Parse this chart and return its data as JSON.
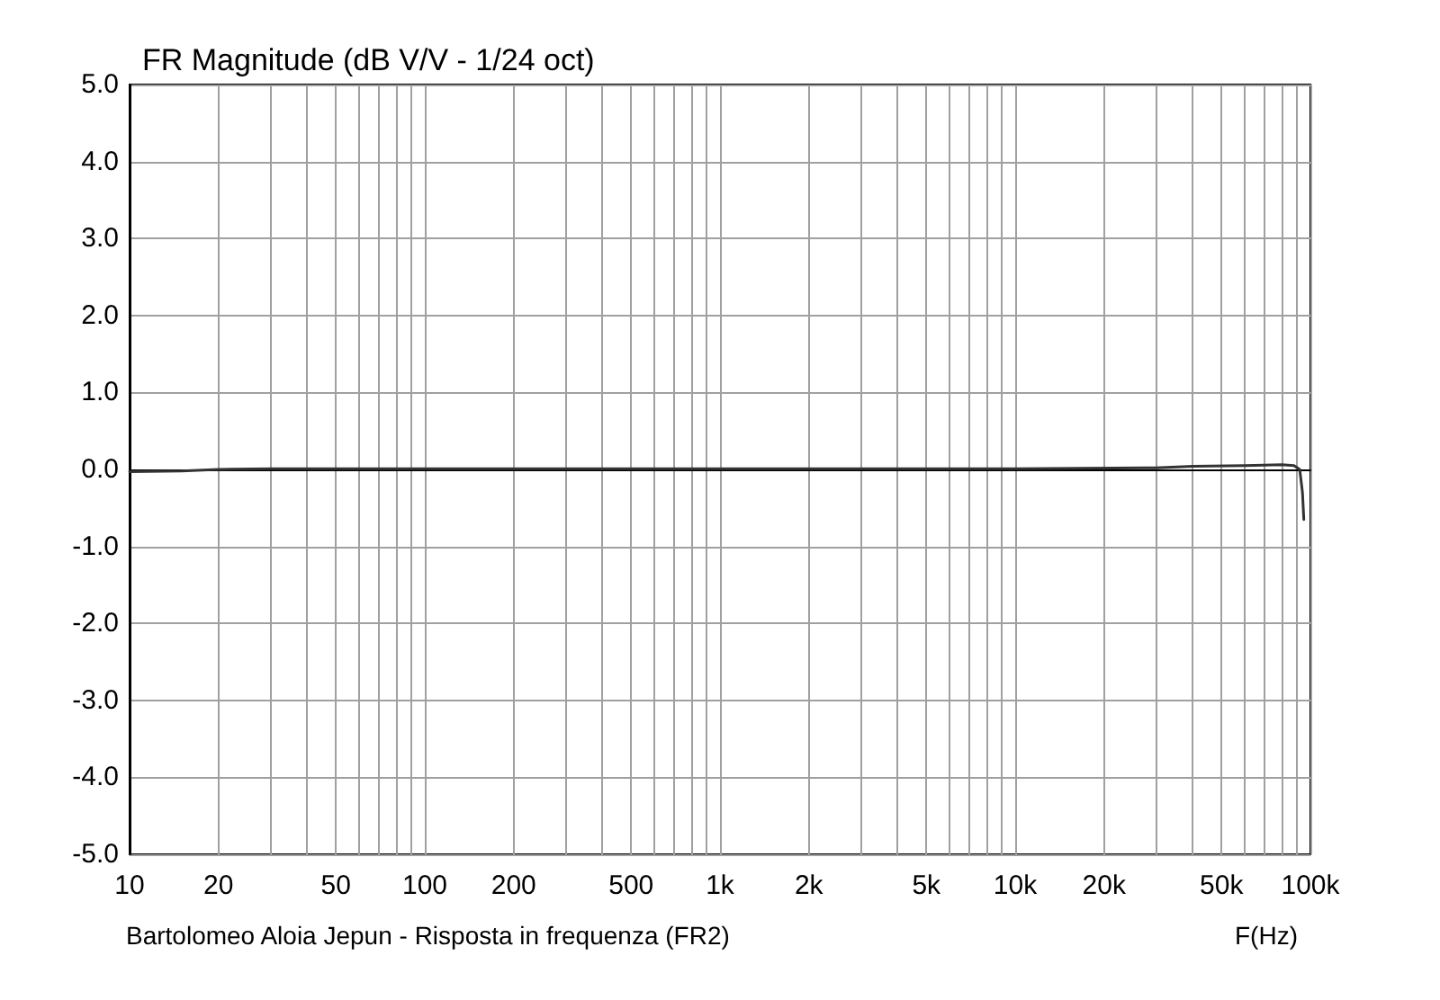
{
  "chart_data": {
    "type": "line",
    "title": "FR Magnitude (dB V/V - 1/24 oct)",
    "xlabel": "F(Hz)",
    "annotations": [
      "Bartolomeo Aloia Jepun - Risposta in frequenza (FR2)"
    ],
    "x": [
      10,
      15,
      20,
      30,
      100,
      1000,
      10000,
      30000,
      40000,
      60000,
      80000,
      88000,
      92000,
      94000,
      95000
    ],
    "series": [
      {
        "color": "#333333",
        "values": [
          -0.03,
          -0.02,
          0,
          0.01,
          0.01,
          0.01,
          0.01,
          0.02,
          0.04,
          0.05,
          0.06,
          0.05,
          0,
          -0.3,
          -0.65
        ]
      }
    ],
    "log": "x",
    "grid": true,
    "marker": "none",
    "line_style": "solid",
    "xlim": [
      10,
      100000
    ],
    "xticks": [
      10,
      20,
      {
        "value": 30,
        "label": null
      },
      {
        "value": 40,
        "label": null
      },
      50,
      {
        "value": 60,
        "label": null
      },
      {
        "value": 70,
        "label": null
      },
      {
        "value": 80,
        "label": null
      },
      {
        "value": 90,
        "label": null
      },
      100,
      200,
      {
        "value": 300,
        "label": null
      },
      {
        "value": 400,
        "label": null
      },
      500,
      {
        "value": 600,
        "label": null
      },
      {
        "value": 700,
        "label": null
      },
      {
        "value": 800,
        "label": null
      },
      {
        "value": 900,
        "label": null
      },
      {
        "value": 1000,
        "label": "1k"
      },
      {
        "value": 2000,
        "label": "2k"
      },
      {
        "value": 3000,
        "label": null
      },
      {
        "value": 4000,
        "label": null
      },
      {
        "value": 5000,
        "label": "5k"
      },
      {
        "value": 6000,
        "label": null
      },
      {
        "value": 7000,
        "label": null
      },
      {
        "value": 8000,
        "label": null
      },
      {
        "value": 9000,
        "label": null
      },
      {
        "value": 10000,
        "label": "10k"
      },
      {
        "value": 20000,
        "label": "20k"
      },
      {
        "value": 30000,
        "label": null
      },
      {
        "value": 40000,
        "label": null
      },
      {
        "value": 50000,
        "label": "50k"
      },
      {
        "value": 60000,
        "label": null
      },
      {
        "value": 70000,
        "label": null
      },
      {
        "value": 80000,
        "label": null
      },
      {
        "value": 90000,
        "label": null
      },
      {
        "value": 100000,
        "label": "100k"
      }
    ],
    "ylim": [
      -5,
      5
    ],
    "yticks": [
      {
        "value": -5,
        "label": "-5.0"
      },
      {
        "value": -4,
        "label": "-4.0"
      },
      {
        "value": -3,
        "label": "-3.0"
      },
      {
        "value": -2,
        "label": "-2.0"
      },
      {
        "value": -1,
        "label": "-1.0"
      },
      {
        "value": 0,
        "label": "0.0"
      },
      {
        "value": 1,
        "label": "1.0"
      },
      {
        "value": 2,
        "label": "2.0"
      },
      {
        "value": 3,
        "label": "3.0"
      },
      {
        "value": 4,
        "label": "4.0"
      },
      {
        "value": 5,
        "label": "5.0"
      }
    ]
  }
}
